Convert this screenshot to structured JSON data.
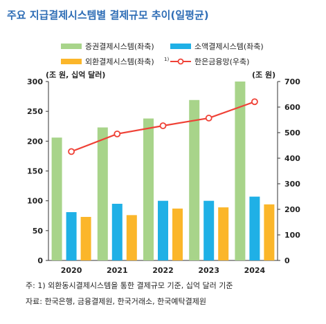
{
  "chart_data": {
    "type": "bar",
    "title": "주요 지급결제시스템별 결제규모 추이(일평균)",
    "categories": [
      "2020",
      "2021",
      "2022",
      "2023",
      "2024"
    ],
    "series": [
      {
        "name": "증권결제시스템(좌축)",
        "type": "bar",
        "axis": "left",
        "color": "#a8d48a",
        "values": [
          206,
          223,
          238,
          269,
          300
        ]
      },
      {
        "name": "소액결제시스템(좌축)",
        "type": "bar",
        "axis": "left",
        "color": "#1fb0e6",
        "values": [
          81,
          95,
          100,
          100,
          107
        ]
      },
      {
        "name": "외환결제시스템(좌축)",
        "type": "bar",
        "axis": "left",
        "color": "#fbb62a",
        "values": [
          73,
          76,
          87,
          89,
          94
        ]
      },
      {
        "name": "한은금융망(우축)",
        "type": "line",
        "axis": "right",
        "color": "#ef4136",
        "values": [
          426,
          495,
          527,
          557,
          621
        ]
      }
    ],
    "left_axis": {
      "label": "(조 원, 십억 달러)",
      "range": [
        0,
        300
      ],
      "ticks": [
        "0",
        "50",
        "100",
        "150",
        "200",
        "250",
        "300"
      ]
    },
    "right_axis": {
      "label": "(조 원)",
      "range": [
        0,
        700
      ],
      "ticks": [
        "0",
        "100",
        "200",
        "300",
        "400",
        "500",
        "600",
        "700"
      ]
    },
    "legend_position": "top",
    "legend_footnote_marker": "1)",
    "grid": false
  },
  "notes": {
    "footnote": "주: 1) 외환동시결제시스템을 통한 결제규모 기준, 십억 달러 기준",
    "source": "자료: 한국은행, 금융결제원, 한국거래소, 한국예탁결제원"
  },
  "colors": {
    "title": "#2d6cb5",
    "axis": "#333333",
    "text": "#222222"
  }
}
